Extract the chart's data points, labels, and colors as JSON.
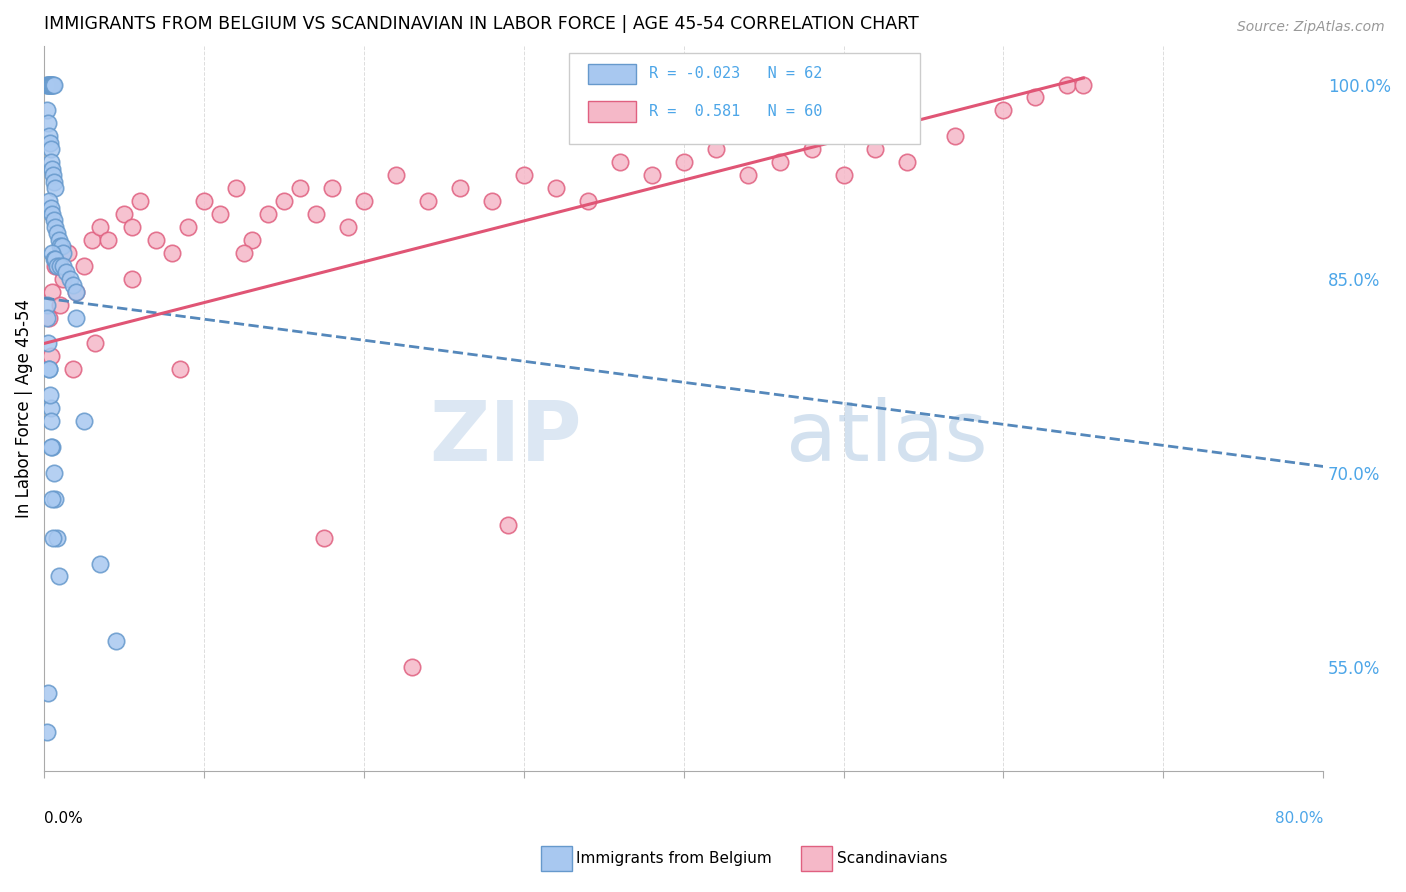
{
  "title": "IMMIGRANTS FROM BELGIUM VS SCANDINAVIAN IN LABOR FORCE | AGE 45-54 CORRELATION CHART",
  "source": "Source: ZipAtlas.com",
  "ylabel": "In Labor Force | Age 45-54",
  "yticks_right": [
    55.0,
    70.0,
    85.0,
    100.0
  ],
  "xlim": [
    0.0,
    80.0
  ],
  "ylim": [
    47.0,
    103.0
  ],
  "blue_color": "#a8c8f0",
  "pink_color": "#f5b8c8",
  "blue_edge_color": "#6699cc",
  "pink_edge_color": "#e06080",
  "blue_line_color": "#5588bb",
  "pink_line_color": "#e05575",
  "right_axis_color": "#4da6e8",
  "watermark_zip_color": "#c5d8ec",
  "watermark_atlas_color": "#a8c4e0",
  "blue_scatter_x": [
    0.15,
    0.2,
    0.25,
    0.3,
    0.35,
    0.4,
    0.45,
    0.5,
    0.55,
    0.6,
    0.2,
    0.25,
    0.3,
    0.35,
    0.4,
    0.45,
    0.5,
    0.55,
    0.6,
    0.65,
    0.3,
    0.4,
    0.5,
    0.6,
    0.7,
    0.8,
    0.9,
    1.0,
    1.1,
    1.2,
    0.5,
    0.6,
    0.7,
    0.8,
    1.0,
    1.2,
    1.4,
    1.6,
    1.8,
    2.0,
    0.3,
    0.4,
    0.5,
    0.6,
    0.7,
    0.8,
    0.9,
    2.5,
    3.5,
    4.5,
    0.15,
    0.2,
    0.25,
    0.3,
    0.35,
    0.4,
    0.45,
    0.5,
    0.55,
    2.0,
    0.18,
    0.22
  ],
  "blue_scatter_y": [
    100.0,
    100.0,
    100.0,
    100.0,
    100.0,
    100.0,
    100.0,
    100.0,
    100.0,
    100.0,
    98.0,
    97.0,
    96.0,
    95.5,
    95.0,
    94.0,
    93.5,
    93.0,
    92.5,
    92.0,
    91.0,
    90.5,
    90.0,
    89.5,
    89.0,
    88.5,
    88.0,
    87.5,
    87.5,
    87.0,
    87.0,
    86.5,
    86.5,
    86.0,
    86.0,
    86.0,
    85.5,
    85.0,
    84.5,
    84.0,
    78.0,
    75.0,
    72.0,
    70.0,
    68.0,
    65.0,
    62.0,
    74.0,
    63.0,
    57.0,
    83.0,
    82.0,
    80.0,
    78.0,
    76.0,
    74.0,
    72.0,
    68.0,
    65.0,
    82.0,
    50.0,
    53.0
  ],
  "pink_scatter_x": [
    0.3,
    0.5,
    0.7,
    1.0,
    1.2,
    1.5,
    2.0,
    2.5,
    3.0,
    3.5,
    4.0,
    5.0,
    5.5,
    6.0,
    7.0,
    8.0,
    9.0,
    10.0,
    11.0,
    12.0,
    13.0,
    14.0,
    15.0,
    16.0,
    17.0,
    18.0,
    19.0,
    20.0,
    22.0,
    24.0,
    26.0,
    28.0,
    30.0,
    32.0,
    34.0,
    36.0,
    38.0,
    40.0,
    42.0,
    44.0,
    46.0,
    48.0,
    50.0,
    52.0,
    54.0,
    57.0,
    60.0,
    62.0,
    64.0,
    65.0,
    0.4,
    0.8,
    1.8,
    3.2,
    5.5,
    8.5,
    12.5,
    17.5,
    23.0,
    29.0
  ],
  "pink_scatter_y": [
    82.0,
    84.0,
    86.0,
    83.0,
    85.0,
    87.0,
    84.0,
    86.0,
    88.0,
    89.0,
    88.0,
    90.0,
    89.0,
    91.0,
    88.0,
    87.0,
    89.0,
    91.0,
    90.0,
    92.0,
    88.0,
    90.0,
    91.0,
    92.0,
    90.0,
    92.0,
    89.0,
    91.0,
    93.0,
    91.0,
    92.0,
    91.0,
    93.0,
    92.0,
    91.0,
    94.0,
    93.0,
    94.0,
    95.0,
    93.0,
    94.0,
    95.0,
    93.0,
    95.0,
    94.0,
    96.0,
    98.0,
    99.0,
    100.0,
    100.0,
    79.0,
    86.0,
    78.0,
    80.0,
    85.0,
    78.0,
    87.0,
    65.0,
    55.0,
    66.0
  ],
  "blue_trend_x": [
    0.0,
    80.0
  ],
  "blue_trend_y": [
    83.5,
    70.5
  ],
  "pink_trend_x": [
    0.0,
    65.0
  ],
  "pink_trend_y": [
    80.0,
    100.5
  ]
}
